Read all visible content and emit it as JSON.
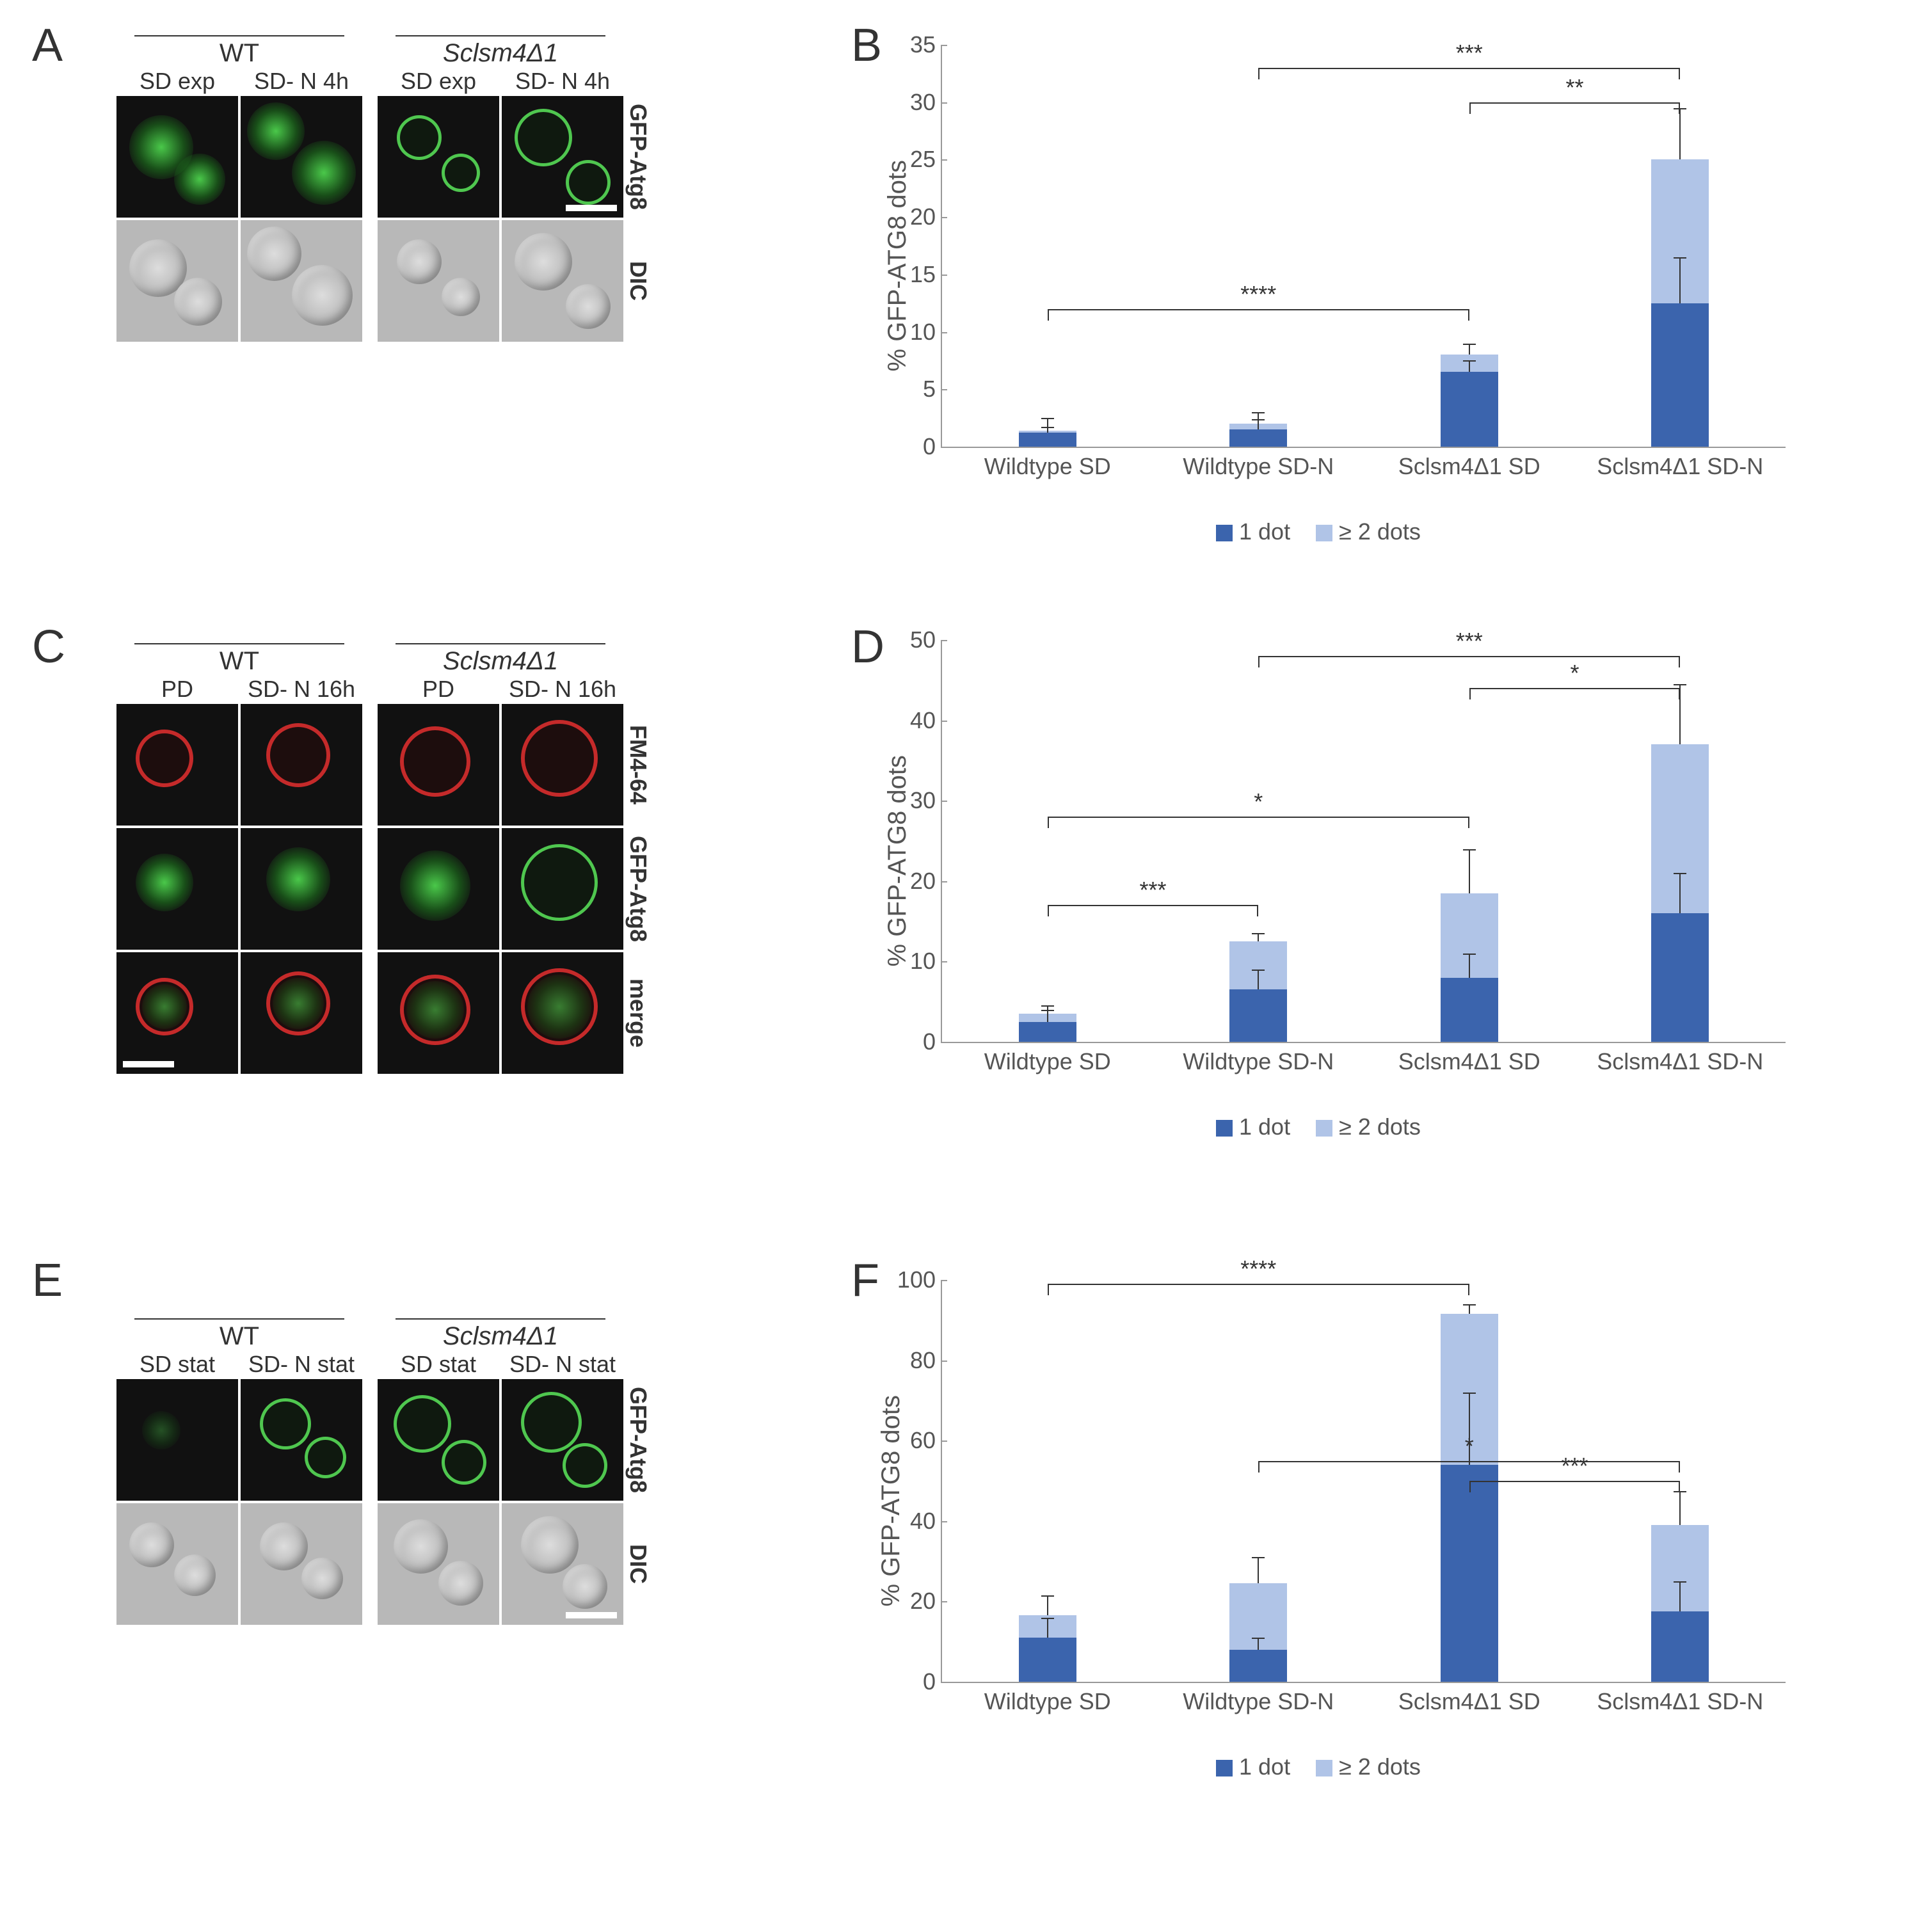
{
  "colors": {
    "darkblue": "#3b64ad",
    "lightblue": "#b0c4e7",
    "axis": "#999999",
    "text": "#4a4a4a",
    "black": "#333333",
    "bg": "#ffffff"
  },
  "panel_letters": {
    "A": "A",
    "B": "B",
    "C": "C",
    "D": "D",
    "E": "E",
    "F": "F"
  },
  "panelA": {
    "top_headers": [
      "WT",
      "Sclsm4Δ1"
    ],
    "col_headers": [
      "SD exp",
      "SD- N 4h",
      "SD exp",
      "SD- N 4h"
    ],
    "row_labels": [
      "GFP-Atg8",
      "DIC"
    ]
  },
  "panelC": {
    "top_headers": [
      "WT",
      "Sclsm4Δ1"
    ],
    "col_headers": [
      "PD",
      "SD- N 16h",
      "PD",
      "SD- N 16h"
    ],
    "row_labels": [
      "FM4-64",
      "GFP-Atg8",
      "merge"
    ]
  },
  "panelE": {
    "top_headers": [
      "WT",
      "Sclsm4Δ1"
    ],
    "col_headers": [
      "SD stat",
      "SD- N stat",
      "SD stat",
      "SD- N stat"
    ],
    "row_labels": [
      "GFP-Atg8",
      "DIC"
    ]
  },
  "chartB": {
    "ylabel": "% GFP-ATG8 dots",
    "ylim": [
      0,
      35
    ],
    "ytick_step": 5,
    "categories": [
      "Wildtype SD",
      "Wildtype SD-N",
      "Sclsm4Δ1 SD",
      "Sclsm4Δ1 SD-N"
    ],
    "series1": {
      "label": "1 dot",
      "color": "#3b64ad",
      "values": [
        1.2,
        1.5,
        6.5,
        12.5
      ],
      "err": [
        1.3,
        1.5,
        1.0,
        4.0
      ]
    },
    "series2": {
      "label": "≥ 2 dots",
      "color": "#b0c4e7",
      "values": [
        0.2,
        0.5,
        1.5,
        12.5
      ],
      "err": [
        0.3,
        0.4,
        1.0,
        4.5
      ]
    },
    "sig": [
      {
        "from": 0,
        "to": 2,
        "label": "****",
        "y": 12
      },
      {
        "from": 1,
        "to": 3,
        "label": "***",
        "y": 33
      },
      {
        "from": 2,
        "to": 3,
        "label": "**",
        "y": 30
      }
    ],
    "legend": [
      "1 dot",
      "≥ 2 dots"
    ]
  },
  "chartD": {
    "ylabel": "% GFP-ATG8 dots",
    "ylim": [
      0,
      50
    ],
    "ytick_step": 10,
    "categories": [
      "Wildtype SD",
      "Wildtype SD-N",
      "Sclsm4Δ1 SD",
      "Sclsm4Δ1 SD-N"
    ],
    "series1": {
      "label": "1 dot",
      "color": "#3b64ad",
      "values": [
        2.5,
        6.5,
        8.0,
        16.0
      ],
      "err": [
        2.0,
        2.5,
        3.0,
        5.0
      ]
    },
    "series2": {
      "label": "≥ 2 dots",
      "color": "#b0c4e7",
      "values": [
        1.0,
        6.0,
        10.5,
        21.0
      ],
      "err": [
        0.5,
        1.0,
        5.5,
        7.5
      ]
    },
    "sig": [
      {
        "from": 0,
        "to": 1,
        "label": "***",
        "y": 17
      },
      {
        "from": 0,
        "to": 2,
        "label": "*",
        "y": 28
      },
      {
        "from": 1,
        "to": 3,
        "label": "***",
        "y": 48
      },
      {
        "from": 2,
        "to": 3,
        "label": "*",
        "y": 44
      }
    ],
    "legend": [
      "1 dot",
      "≥ 2 dots"
    ]
  },
  "chartF": {
    "ylabel": "% GFP-ATG8 dots",
    "ylim": [
      0,
      100
    ],
    "ytick_step": 20,
    "categories": [
      "Wildtype SD",
      "Wildtype SD-N",
      "Sclsm4Δ1 SD",
      "Sclsm4Δ1 SD-N"
    ],
    "series1": {
      "label": "1 dot",
      "color": "#3b64ad",
      "values": [
        11.0,
        8.0,
        54.0,
        17.5
      ],
      "err": [
        5.0,
        3.0,
        18.0,
        7.5
      ]
    },
    "series2": {
      "label": "≥ 2 dots",
      "color": "#b0c4e7",
      "values": [
        5.5,
        16.5,
        37.5,
        21.5
      ],
      "err": [
        5.0,
        6.5,
        2.5,
        8.5
      ]
    },
    "sig": [
      {
        "from": 0,
        "to": 2,
        "label": "****",
        "y": 99
      },
      {
        "from": 1,
        "to": 3,
        "label": "*",
        "y": 55
      },
      {
        "from": 2,
        "to": 3,
        "label": "***",
        "y": 50
      }
    ],
    "legend": [
      "1 dot",
      "≥ 2 dots"
    ]
  }
}
